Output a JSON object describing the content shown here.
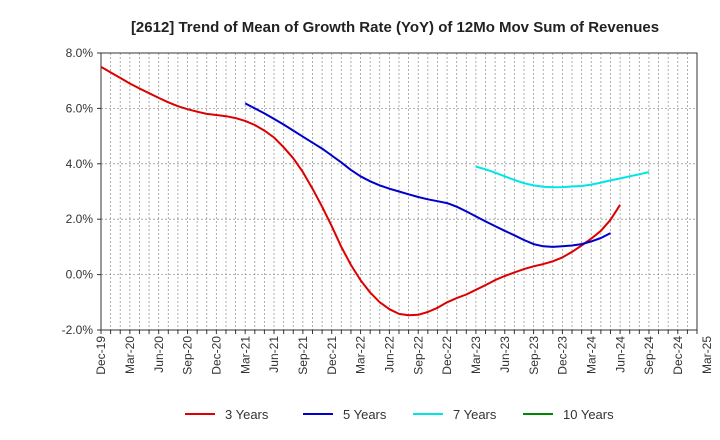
{
  "chart_data": {
    "type": "line",
    "title": "[2612]  Trend of Mean of Growth Rate (YoY) of 12Mo Mov Sum of Revenues",
    "xlabel": "",
    "ylabel": "",
    "ylim": [
      -2.0,
      8.0
    ],
    "yticks": [
      -2.0,
      0.0,
      2.0,
      4.0,
      6.0,
      8.0
    ],
    "ytick_labels": [
      "-2.0%",
      "0.0%",
      "2.0%",
      "4.0%",
      "6.0%",
      "8.0%"
    ],
    "x_start": "Dec-19",
    "x_months_count": 63,
    "xtick_labels": [
      "Dec-19",
      "Mar-20",
      "Jun-20",
      "Sep-20",
      "Dec-20",
      "Mar-21",
      "Jun-21",
      "Sep-21",
      "Dec-21",
      "Mar-22",
      "Jun-22",
      "Sep-22",
      "Dec-22",
      "Mar-23",
      "Jun-23",
      "Sep-23",
      "Dec-23",
      "Mar-24",
      "Jun-24",
      "Sep-24",
      "Dec-24",
      "Mar-25"
    ],
    "grid": true,
    "legend_position": "bottom",
    "series": [
      {
        "name": "3 Years",
        "color": "#dd0000",
        "start_month_index": 0,
        "values": [
          7.5,
          7.3,
          7.1,
          6.9,
          6.72,
          6.55,
          6.38,
          6.22,
          6.08,
          5.97,
          5.88,
          5.8,
          5.76,
          5.72,
          5.65,
          5.55,
          5.4,
          5.2,
          4.95,
          4.6,
          4.2,
          3.7,
          3.1,
          2.45,
          1.75,
          1.0,
          0.35,
          -0.2,
          -0.65,
          -1.0,
          -1.25,
          -1.42,
          -1.47,
          -1.45,
          -1.35,
          -1.2,
          -1.0,
          -0.85,
          -0.72,
          -0.55,
          -0.38,
          -0.2,
          -0.05,
          0.08,
          0.2,
          0.3,
          0.38,
          0.48,
          0.62,
          0.82,
          1.05,
          1.3,
          1.58,
          1.98,
          2.52
        ]
      },
      {
        "name": "5 Years",
        "color": "#0000cc",
        "start_month_index": 15,
        "values": [
          6.18,
          6.0,
          5.82,
          5.62,
          5.42,
          5.2,
          4.98,
          4.76,
          4.55,
          4.3,
          4.05,
          3.78,
          3.55,
          3.37,
          3.22,
          3.1,
          3.0,
          2.9,
          2.8,
          2.72,
          2.65,
          2.58,
          2.45,
          2.28,
          2.1,
          1.92,
          1.75,
          1.58,
          1.42,
          1.25,
          1.1,
          1.02,
          1.0,
          1.02,
          1.05,
          1.1,
          1.2,
          1.32,
          1.5
        ]
      },
      {
        "name": "7 Years",
        "color": "#00e5e5",
        "start_month_index": 39,
        "values": [
          3.9,
          3.8,
          3.68,
          3.55,
          3.42,
          3.3,
          3.22,
          3.17,
          3.15,
          3.16,
          3.18,
          3.2,
          3.25,
          3.32,
          3.4,
          3.47,
          3.55,
          3.62,
          3.7
        ]
      },
      {
        "name": "10 Years",
        "color": "#008800",
        "start_month_index": 0,
        "values": []
      }
    ]
  }
}
